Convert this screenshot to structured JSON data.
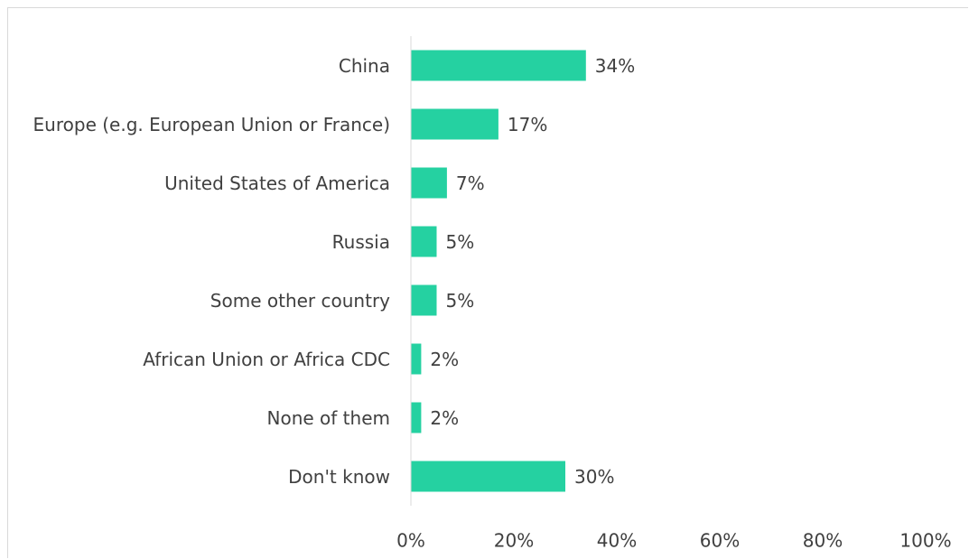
{
  "chart_data": {
    "type": "bar",
    "orientation": "horizontal",
    "categories": [
      "China",
      "Europe (e.g. European Union or France)",
      "United States of America",
      "Russia",
      "Some other country",
      "African Union or Africa CDC",
      "None of them",
      "Don't know"
    ],
    "values": [
      34,
      17,
      7,
      5,
      5,
      2,
      2,
      30
    ],
    "value_labels": [
      "34%",
      "17%",
      "7%",
      "5%",
      "5%",
      "2%",
      "2%",
      "30%"
    ],
    "color": "#25d1a1",
    "xlim": [
      0,
      100
    ],
    "xticks": [
      {
        "value": 0,
        "label": "0%"
      },
      {
        "value": 20,
        "label": "20%"
      },
      {
        "value": 40,
        "label": "40%"
      },
      {
        "value": 60,
        "label": "60%"
      },
      {
        "value": 80,
        "label": "80%"
      },
      {
        "value": 100,
        "label": "100%"
      }
    ],
    "grid": false
  }
}
